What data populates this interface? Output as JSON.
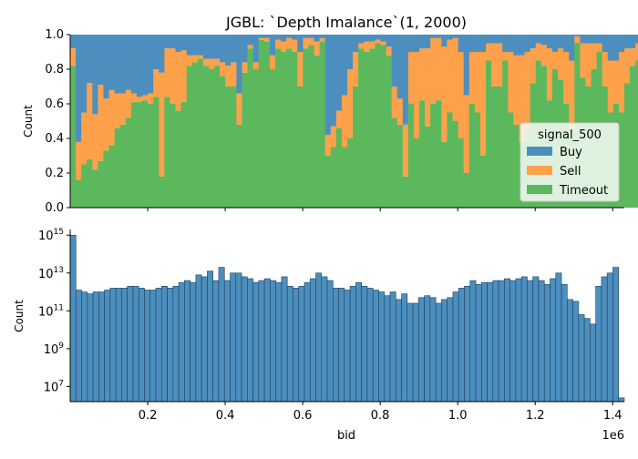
{
  "figure": {
    "title": "JGBL: `Depth Imalance`(1, 2000)",
    "x_offset_label": "1e6"
  },
  "colors": {
    "buy": "#4c8fbf",
    "sell": "#ffa04a",
    "timeout": "#5cb85c",
    "bar_fill": "#4c8fbf",
    "bar_edge": "#1f3f5a"
  },
  "chart_data": [
    {
      "type": "bar",
      "stacked": "fill",
      "title": "JGBL: `Depth Imalance`(1, 2000)",
      "xlabel": "",
      "ylabel": "Count",
      "xlim": [
        0,
        1430000
      ],
      "ylim": [
        0,
        1
      ],
      "yticks": [
        "0.0",
        "0.2",
        "0.4",
        "0.6",
        "0.8",
        "1.0"
      ],
      "legend": {
        "title": "signal_500",
        "placement": "center-right"
      },
      "categories_start": 0,
      "bin_width": 14300,
      "series": [
        {
          "name": "Timeout",
          "values": [
            0.82,
            0.16,
            0.25,
            0.28,
            0.22,
            0.27,
            0.33,
            0.36,
            0.46,
            0.48,
            0.52,
            0.61,
            0.61,
            0.62,
            0.6,
            0.64,
            0.18,
            0.64,
            0.6,
            0.56,
            0.61,
            0.82,
            0.84,
            0.86,
            0.82,
            0.8,
            0.82,
            0.76,
            0.7,
            0.7,
            0.48,
            0.78,
            0.92,
            0.8,
            0.97,
            0.96,
            0.8,
            0.92,
            0.9,
            0.92,
            0.9,
            0.7,
            0.92,
            0.94,
            0.88,
            0.96,
            0.3,
            0.35,
            0.46,
            0.35,
            0.4,
            0.7,
            0.92,
            0.9,
            0.92,
            0.95,
            0.94,
            0.88,
            0.52,
            0.48,
            0.18,
            0.6,
            0.4,
            0.62,
            0.47,
            0.6,
            0.62,
            0.38,
            0.55,
            0.5,
            0.4,
            0.2,
            0.6,
            0.55,
            0.3,
            0.85,
            0.7,
            0.7,
            0.85,
            0.55,
            0.48,
            0.38,
            0.45,
            0.72,
            0.85,
            0.82,
            0.62,
            0.8,
            0.74,
            0.6,
            0.45,
            0.95,
            0.75,
            0.7,
            0.8,
            0.9,
            0.7,
            0.55,
            0.6,
            0.55,
            0.72,
            0.82,
            0.85,
            0.8,
            0.65,
            0.88,
            0.6,
            0.7,
            0.2,
            0.55
          ]
        },
        {
          "name": "Sell",
          "values": [
            0.1,
            0.22,
            0.3,
            0.44,
            0.32,
            0.44,
            0.3,
            0.32,
            0.2,
            0.18,
            0.16,
            0.05,
            0.03,
            0.03,
            0.06,
            0.16,
            0.6,
            0.28,
            0.32,
            0.34,
            0.3,
            0.06,
            0.04,
            0.02,
            0.04,
            0.06,
            0.04,
            0.08,
            0.12,
            0.14,
            0.18,
            0.06,
            0.02,
            0.04,
            0.01,
            0.02,
            0.08,
            0.05,
            0.06,
            0.06,
            0.07,
            0.2,
            0.06,
            0.04,
            0.08,
            0.02,
            0.12,
            0.12,
            0.1,
            0.3,
            0.4,
            0.2,
            0.03,
            0.06,
            0.04,
            0.02,
            0.02,
            0.05,
            0.18,
            0.15,
            0.3,
            0.3,
            0.5,
            0.3,
            0.45,
            0.38,
            0.36,
            0.55,
            0.42,
            0.48,
            0.5,
            0.45,
            0.3,
            0.35,
            0.6,
            0.1,
            0.25,
            0.25,
            0.05,
            0.35,
            0.4,
            0.5,
            0.45,
            0.2,
            0.1,
            0.12,
            0.3,
            0.1,
            0.18,
            0.3,
            0.4,
            0.04,
            0.2,
            0.25,
            0.15,
            0.05,
            0.2,
            0.3,
            0.25,
            0.35,
            0.2,
            0.1,
            0.1,
            0.15,
            0.25,
            0.05,
            0.3,
            0.22,
            0.5,
            0.35
          ]
        },
        {
          "name": "Buy",
          "values": [
            0.08,
            0.62,
            0.45,
            0.28,
            0.46,
            0.29,
            0.37,
            0.32,
            0.34,
            0.34,
            0.32,
            0.34,
            0.36,
            0.35,
            0.34,
            0.2,
            0.22,
            0.08,
            0.08,
            0.1,
            0.09,
            0.12,
            0.12,
            0.12,
            0.14,
            0.14,
            0.14,
            0.16,
            0.18,
            0.16,
            0.34,
            0.16,
            0.06,
            0.16,
            0.02,
            0.02,
            0.12,
            0.03,
            0.04,
            0.02,
            0.03,
            0.1,
            0.02,
            0.02,
            0.04,
            0.02,
            0.58,
            0.53,
            0.44,
            0.35,
            0.2,
            0.1,
            0.05,
            0.04,
            0.04,
            0.03,
            0.04,
            0.07,
            0.3,
            0.37,
            0.52,
            0.1,
            0.1,
            0.08,
            0.08,
            0.02,
            0.02,
            0.07,
            0.03,
            0.02,
            0.1,
            0.35,
            0.1,
            0.1,
            0.1,
            0.05,
            0.05,
            0.05,
            0.1,
            0.1,
            0.12,
            0.12,
            0.1,
            0.08,
            0.05,
            0.06,
            0.08,
            0.1,
            0.08,
            0.1,
            0.15,
            0.01,
            0.05,
            0.05,
            0.05,
            0.05,
            0.1,
            0.15,
            0.15,
            0.1,
            0.08,
            0.08,
            0.05,
            0.05,
            0.1,
            0.07,
            0.1,
            0.08,
            0.3,
            0.1
          ]
        }
      ]
    },
    {
      "type": "bar",
      "scale": "log",
      "xlabel": "bid",
      "ylabel": "Count",
      "xlim": [
        0,
        1430000
      ],
      "ylim_log10": [
        6.2,
        15.3
      ],
      "yticks": [
        {
          "base": "10",
          "exp": "7",
          "log10": 7
        },
        {
          "base": "10",
          "exp": "9",
          "log10": 9
        },
        {
          "base": "10",
          "exp": "11",
          "log10": 11
        },
        {
          "base": "10",
          "exp": "13",
          "log10": 13
        },
        {
          "base": "10",
          "exp": "15",
          "log10": 15
        }
      ],
      "xticks": [
        {
          "label": "0.2",
          "value": 200000
        },
        {
          "label": "0.4",
          "value": 400000
        },
        {
          "label": "0.6",
          "value": 600000
        },
        {
          "label": "0.8",
          "value": 800000
        },
        {
          "label": "1.0",
          "value": 1000000
        },
        {
          "label": "1.2",
          "value": 1200000
        },
        {
          "label": "1.4",
          "value": 1400000
        }
      ],
      "bin_width": 14300,
      "log10_values": [
        15.0,
        12.1,
        12.0,
        11.9,
        12.0,
        12.0,
        12.1,
        12.2,
        12.2,
        12.2,
        12.3,
        12.3,
        12.2,
        12.1,
        12.1,
        12.2,
        12.3,
        12.2,
        12.3,
        12.5,
        12.6,
        12.5,
        12.9,
        12.8,
        13.1,
        12.6,
        13.3,
        12.6,
        13.0,
        13.0,
        12.8,
        12.7,
        12.5,
        12.6,
        12.7,
        12.6,
        12.5,
        12.8,
        12.3,
        12.2,
        12.3,
        12.5,
        12.7,
        13.0,
        12.8,
        12.6,
        12.2,
        12.2,
        12.1,
        12.3,
        12.5,
        12.3,
        12.2,
        12.1,
        12.0,
        11.8,
        12.0,
        11.6,
        11.9,
        11.4,
        11.4,
        11.7,
        11.8,
        11.7,
        11.4,
        11.6,
        11.7,
        12.0,
        12.2,
        12.3,
        12.6,
        12.4,
        12.5,
        12.5,
        12.6,
        12.6,
        12.7,
        12.6,
        12.7,
        12.8,
        12.6,
        12.8,
        12.6,
        12.4,
        12.7,
        13.0,
        12.4,
        11.6,
        11.5,
        10.8,
        10.6,
        10.3,
        12.3,
        12.8,
        13.0,
        13.3,
        6.4
      ]
    }
  ]
}
